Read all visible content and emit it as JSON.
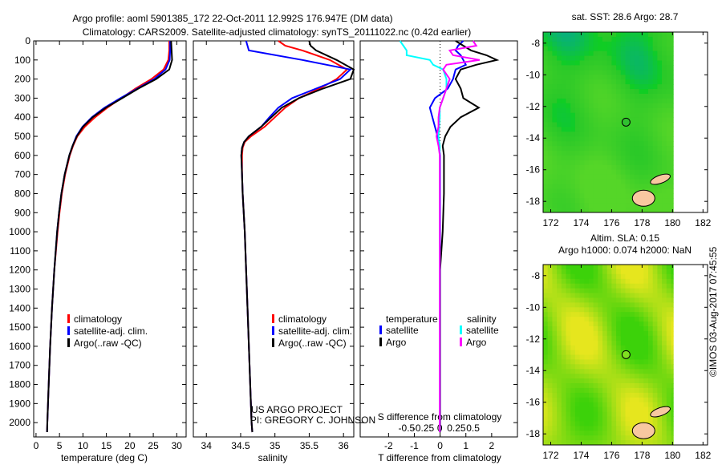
{
  "title_line1": "Argo profile: aoml 5901385_172 22-Oct-2011 12.992S 176.947E (DM data)",
  "title_line2": "Climatology: CARS2009. Satellite-adjusted climatology: synTS_20111022.nc (0.42d earlier)",
  "credit_line1": "US ARGO PROJECT",
  "credit_line2": "PI: GREGORY C. JOHNSON",
  "timestamp": "©IMOS 03-Aug-2017 07:45:55",
  "colors": {
    "climatology": "#ff0000",
    "satellite": "#0000ff",
    "argo": "#000000",
    "sal_satellite": "#00ffff",
    "sal_argo": "#ff00ff"
  },
  "chart_data": [
    {
      "type": "line",
      "name": "temperature-profile",
      "xlabel": "temperature (deg C)",
      "xlim": [
        -0.5,
        32
      ],
      "xticks": [
        0,
        5,
        10,
        15,
        20,
        25,
        30
      ],
      "ylim": [
        0,
        2075
      ],
      "yticks": [
        0,
        100,
        200,
        300,
        400,
        500,
        600,
        700,
        800,
        900,
        1000,
        1100,
        1200,
        1300,
        1400,
        1500,
        1600,
        1700,
        1800,
        1900,
        2000
      ],
      "legend": [
        "climatology",
        "satellite-adj. clim.",
        "Argo(..raw -QC)"
      ],
      "depth": [
        0,
        50,
        100,
        150,
        200,
        250,
        300,
        350,
        400,
        450,
        500,
        550,
        600,
        700,
        800,
        900,
        1000,
        1200,
        1400,
        1600,
        1800,
        2000,
        2050
      ],
      "series": [
        {
          "name": "climatology",
          "color": "#ff0000",
          "values": [
            28.4,
            28.4,
            28.2,
            27.2,
            24.6,
            21.2,
            18.2,
            15.2,
            12.6,
            10.4,
            8.8,
            7.9,
            7.2,
            6.2,
            5.5,
            5.0,
            4.6,
            3.9,
            3.4,
            3.0,
            2.7,
            2.4,
            2.35
          ]
        },
        {
          "name": "satellite-adj. clim.",
          "color": "#0000ff",
          "values": [
            28.6,
            28.6,
            28.5,
            27.6,
            25.2,
            21.6,
            18.0,
            14.6,
            11.9,
            9.9,
            8.6,
            7.8,
            7.1,
            6.1,
            5.4,
            4.9,
            4.5,
            3.9,
            3.4,
            3.0,
            2.7,
            2.4,
            2.35
          ]
        },
        {
          "name": "Argo(..raw -QC)",
          "color": "#000000",
          "values": [
            28.8,
            28.9,
            29.0,
            28.4,
            25.6,
            21.8,
            18.4,
            14.9,
            12.1,
            10.0,
            8.7,
            7.8,
            7.1,
            6.1,
            5.4,
            4.9,
            4.5,
            3.9,
            3.4,
            3.0,
            2.7,
            2.4,
            2.35
          ]
        }
      ]
    },
    {
      "type": "line",
      "name": "salinity-profile",
      "xlabel": "salinity",
      "xlim": [
        33.81,
        36.15
      ],
      "xticks": [
        34,
        34.5,
        35,
        35.5,
        36
      ],
      "ylim": [
        0,
        2075
      ],
      "legend": [
        "climatology",
        "satellite-adj. clim.",
        "Argo(..raw -QC)"
      ],
      "depth": [
        0,
        25,
        50,
        100,
        150,
        200,
        250,
        300,
        350,
        400,
        450,
        500,
        530,
        560,
        600,
        700,
        800,
        1000,
        1200,
        1500,
        1800,
        2000,
        2050
      ],
      "series": [
        {
          "name": "climatology",
          "color": "#ff0000",
          "values": [
            35.05,
            35.15,
            35.4,
            35.8,
            36.05,
            35.9,
            35.65,
            35.35,
            35.15,
            35.0,
            34.85,
            34.65,
            34.56,
            34.53,
            34.52,
            34.52,
            34.53,
            34.56,
            34.58,
            34.61,
            34.64,
            34.66,
            34.67
          ]
        },
        {
          "name": "satellite-adj. clim.",
          "color": "#0000ff",
          "values": [
            34.58,
            34.6,
            34.62,
            35.4,
            36.1,
            35.95,
            35.6,
            35.25,
            35.05,
            34.92,
            34.8,
            34.62,
            34.55,
            34.52,
            34.51,
            34.52,
            34.53,
            34.56,
            34.58,
            34.61,
            34.64,
            34.66,
            34.67
          ]
        },
        {
          "name": "Argo(..raw -QC)",
          "color": "#000000",
          "values": [
            35.5,
            35.52,
            35.6,
            35.9,
            36.15,
            36.1,
            35.7,
            35.35,
            35.1,
            34.95,
            34.8,
            34.62,
            34.55,
            34.52,
            34.51,
            34.52,
            34.53,
            34.56,
            34.58,
            34.61,
            34.64,
            34.66,
            34.67
          ]
        }
      ]
    },
    {
      "type": "line",
      "name": "difference-profile",
      "xlabel": "T difference from climatology",
      "xlabel2": "S difference from climatology",
      "xlim": [
        -3.1,
        3.0
      ],
      "xticks": [
        -2,
        -1,
        0,
        1,
        2
      ],
      "xlim2": [
        -1.2,
        1.17
      ],
      "xticks2": [
        -0.5,
        -0.25,
        0,
        0.25,
        0.5
      ],
      "ylim": [
        0,
        2075
      ],
      "legend_title_t": "temperature",
      "legend_title_s": "salinity",
      "legend_t": [
        "satellite",
        "Argo"
      ],
      "legend_s": [
        "satellite",
        "Argo"
      ],
      "depth": [
        0,
        25,
        50,
        75,
        100,
        125,
        150,
        200,
        250,
        300,
        350,
        400,
        450,
        500,
        550,
        600,
        700,
        800,
        1000,
        1200,
        1500,
        2000,
        2050
      ],
      "series": [
        {
          "name": "T satellite",
          "axis": "T",
          "color": "#0000ff",
          "values": [
            0.9,
            0.7,
            0.6,
            0.8,
            0.9,
            1.0,
            0.6,
            0.5,
            0.3,
            -0.2,
            -0.4,
            -0.3,
            -0.2,
            -0.1,
            -0.05,
            0.0,
            0.0,
            0.0,
            0.0,
            0.0,
            0.0,
            0.0,
            0.0
          ]
        },
        {
          "name": "T Argo",
          "axis": "T",
          "color": "#000000",
          "values": [
            0.6,
            0.9,
            1.2,
            1.8,
            2.2,
            1.4,
            0.8,
            0.6,
            0.8,
            0.9,
            1.5,
            0.8,
            0.4,
            0.2,
            0.1,
            0.15,
            0.15,
            0.15,
            0.1,
            0.0,
            0.0,
            0.0,
            0.0
          ]
        },
        {
          "name": "S satellite",
          "axis": "S",
          "color": "#00ffff",
          "values": [
            -0.6,
            -0.55,
            -0.5,
            -0.5,
            -0.15,
            -0.1,
            0.05,
            0.1,
            0.1,
            0.05,
            0.0,
            0.0,
            -0.01,
            -0.02,
            0.0,
            0.0,
            0.0,
            0.0,
            0.0,
            0.0,
            0.0,
            0.0,
            0.0
          ]
        },
        {
          "name": "S Argo",
          "axis": "S",
          "color": "#ff00ff",
          "values": [
            0.5,
            0.55,
            0.15,
            0.2,
            0.6,
            0.1,
            0.05,
            0.15,
            0.1,
            0.05,
            0.0,
            -0.02,
            -0.02,
            -0.05,
            -0.02,
            0.0,
            0.0,
            0.0,
            0.0,
            0.0,
            0.0,
            0.0,
            0.0
          ]
        }
      ]
    },
    {
      "type": "heatmap",
      "name": "sst-map",
      "title": "sat. SST: 28.6 Argo: 28.7",
      "xlim": [
        171.5,
        182.3
      ],
      "xticks": [
        172,
        174,
        176,
        178,
        180,
        182
      ],
      "ylim": [
        -18.7,
        -7.3
      ],
      "yticks": [
        -8,
        -10,
        -12,
        -14,
        -16,
        -18
      ],
      "float_position": [
        176.947,
        -12.992
      ]
    },
    {
      "type": "heatmap",
      "name": "sla-map",
      "title_line1": "Altim. SLA: 0.15",
      "title_line2": "Argo h1000: 0.074 h2000: NaN",
      "xlim": [
        171.5,
        182.3
      ],
      "xticks": [
        172,
        174,
        176,
        178,
        180,
        182
      ],
      "ylim": [
        -18.7,
        -7.3
      ],
      "yticks": [
        -8,
        -10,
        -12,
        -14,
        -16,
        -18
      ],
      "float_position": [
        176.947,
        -12.992
      ]
    }
  ]
}
